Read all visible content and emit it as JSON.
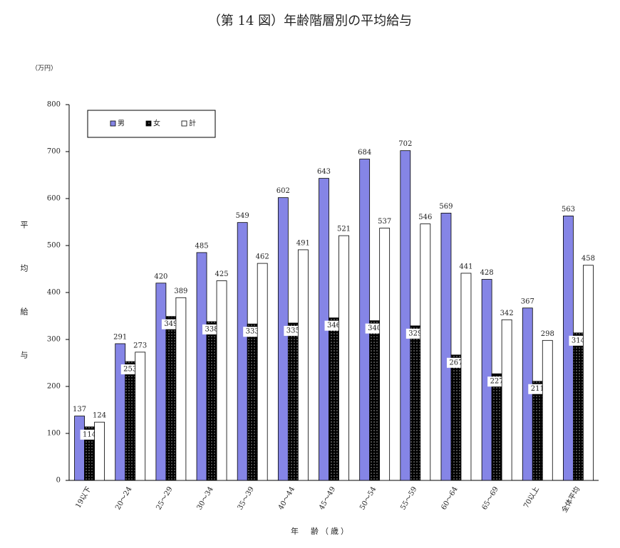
{
  "chart_data": {
    "type": "bar",
    "title": "（第 14 図）年齢階層別の平均給与",
    "unit_label": "（万円）",
    "y_label": "平均給与",
    "x_label": "年　齢（歳）",
    "categories": [
      "19以下",
      "20～24",
      "25～29",
      "30～34",
      "35～39",
      "40～44",
      "45～49",
      "50～54",
      "55～59",
      "60～64",
      "65～69",
      "70以上",
      "全体平均"
    ],
    "series": [
      {
        "name": "男",
        "color": "#8585e6",
        "values": [
          137,
          291,
          420,
          485,
          549,
          602,
          643,
          684,
          702,
          569,
          428,
          367,
          563
        ]
      },
      {
        "name": "女",
        "color": "#000000",
        "values": [
          114,
          253,
          349,
          338,
          333,
          335,
          346,
          340,
          329,
          267,
          227,
          211,
          314
        ]
      },
      {
        "name": "計",
        "color": "#ffffff",
        "values": [
          124,
          273,
          389,
          425,
          462,
          491,
          521,
          537,
          546,
          441,
          342,
          298,
          458
        ]
      }
    ],
    "ylim": [
      0,
      800
    ],
    "yticks": [
      0,
      100,
      200,
      300,
      400,
      500,
      600,
      700,
      800
    ],
    "grid": false,
    "legend": "top-left"
  }
}
